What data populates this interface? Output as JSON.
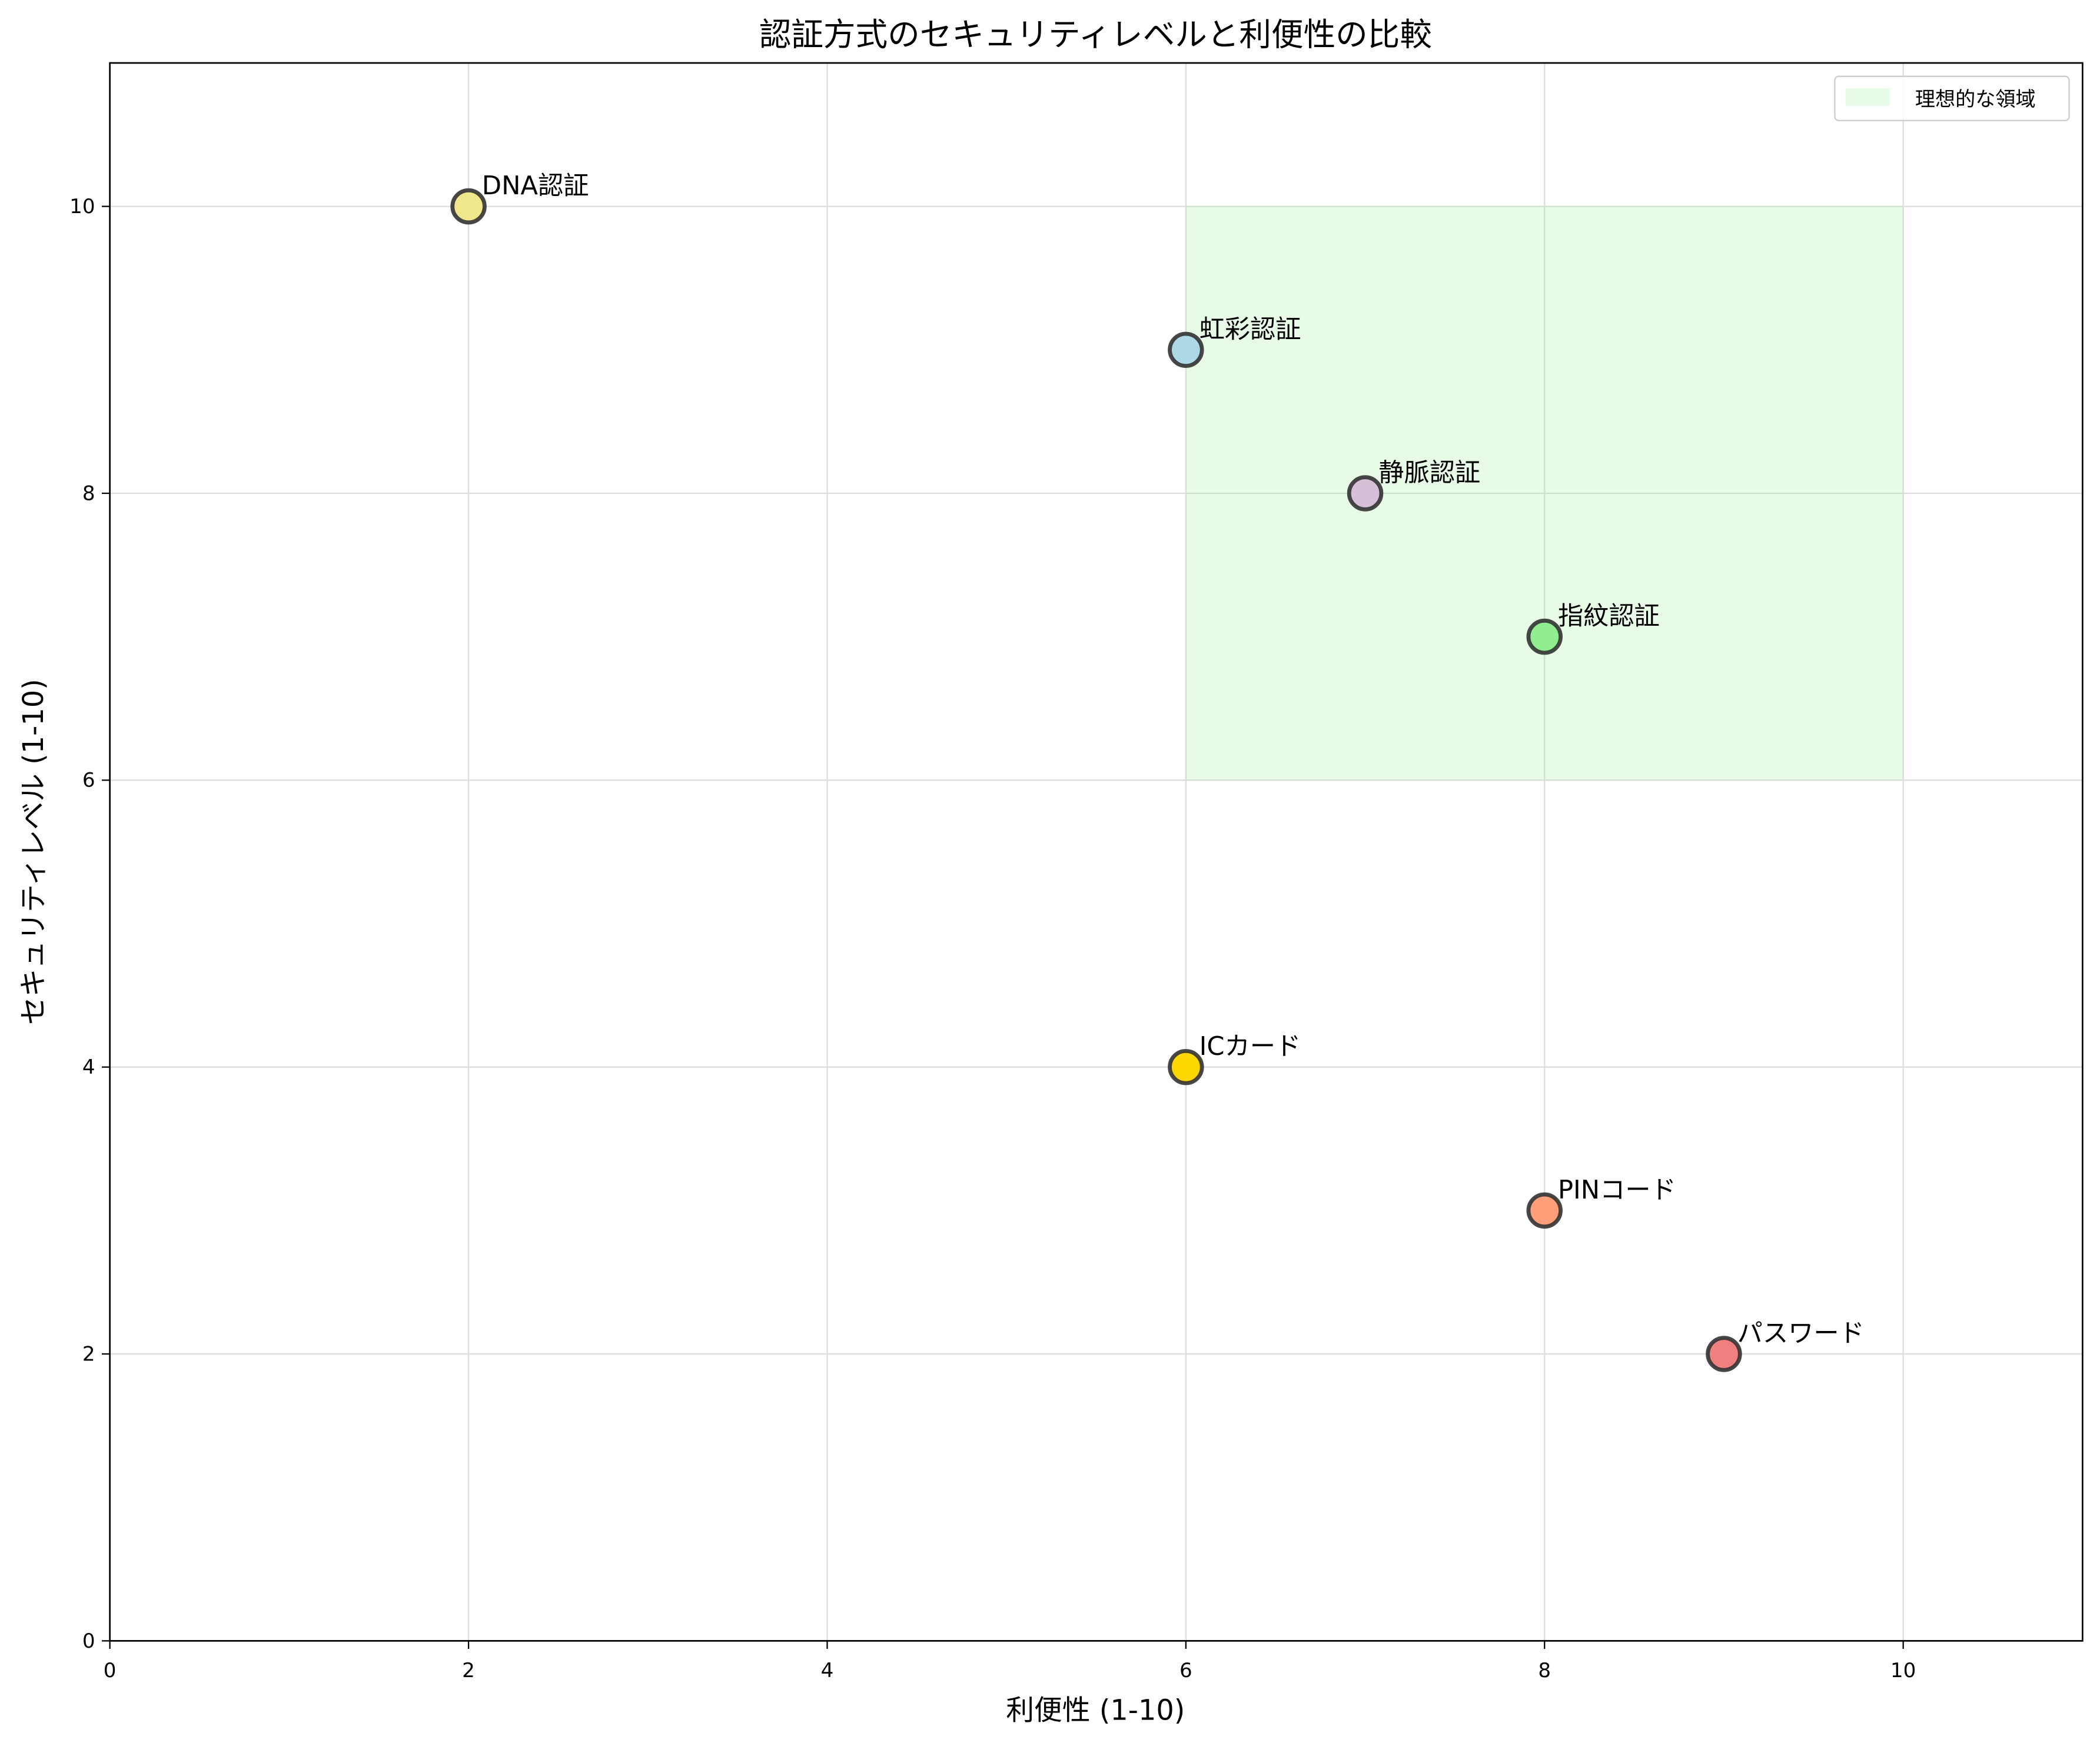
{
  "chart_data": {
    "type": "scatter",
    "title": "認証方式のセキュリティレベルと利便性の比較",
    "xlabel": "利便性 (1-10)",
    "ylabel": "セキュリティレベル (1-10)",
    "xlim": [
      0,
      11
    ],
    "ylim": [
      0,
      11
    ],
    "xticks": [
      0,
      2,
      4,
      6,
      8,
      10
    ],
    "yticks": [
      0,
      2,
      4,
      6,
      8,
      10
    ],
    "grid": true,
    "legend": "upper right",
    "region": {
      "name": "理想的な領域",
      "x": [
        6,
        10
      ],
      "y": [
        6,
        10
      ],
      "color": "#90ee90"
    },
    "points": [
      {
        "label": "パスワード",
        "x": 9,
        "y": 2,
        "color": "#f08080"
      },
      {
        "label": "PINコード",
        "x": 8,
        "y": 3,
        "color": "#ffa07a"
      },
      {
        "label": "ICカード",
        "x": 6,
        "y": 4,
        "color": "#ffd700"
      },
      {
        "label": "指紋認証",
        "x": 8,
        "y": 7,
        "color": "#90ee90"
      },
      {
        "label": "静脈認証",
        "x": 7,
        "y": 8,
        "color": "#d8bfd8"
      },
      {
        "label": "虹彩認証",
        "x": 6,
        "y": 9,
        "color": "#add8e6"
      },
      {
        "label": "DNA認証",
        "x": 2,
        "y": 10,
        "color": "#f0e68c"
      }
    ]
  }
}
